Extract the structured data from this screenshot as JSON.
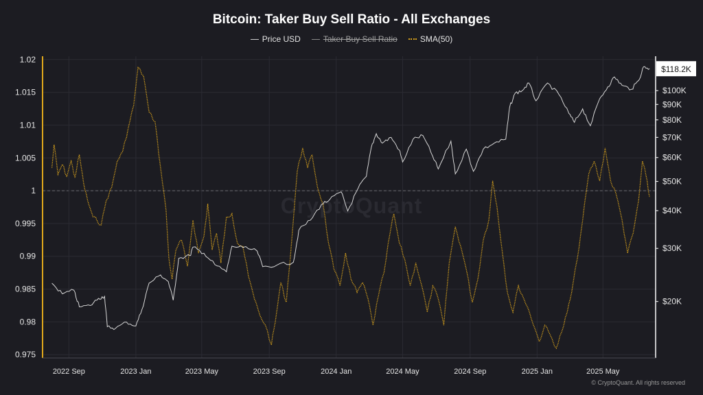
{
  "chart_data": {
    "type": "line",
    "title": "Bitcoin: Taker Buy Sell Ratio - All Exchanges",
    "legend_position": "top-center",
    "grid": true,
    "legend": [
      {
        "key": "price",
        "label": "Price USD",
        "style": "solid",
        "color": "#d0d0d0",
        "visible": true
      },
      {
        "key": "ratio",
        "label": "Taker Buy Sell Ratio",
        "style": "solid",
        "color": "#8a8a8a",
        "visible": false
      },
      {
        "key": "sma",
        "label": "SMA(50)",
        "style": "dotted",
        "color": "#e0a81c",
        "visible": true
      }
    ],
    "x_ticks": [
      "2022 Sep",
      "2023 Jan",
      "2023 May",
      "2023 Sep",
      "2024 Jan",
      "2024 May",
      "2024 Sep",
      "2025 Jan",
      "2025 May"
    ],
    "y_left": {
      "ticks": [
        "1.02",
        "1.015",
        "1.01",
        "1.005",
        "1",
        "0.995",
        "0.99",
        "0.985",
        "0.98",
        "0.975"
      ],
      "range": [
        0.9745,
        1.0205
      ],
      "reference_line": 1
    },
    "y_right": {
      "scale": "log",
      "ticks": [
        "$100K",
        "$90K",
        "$80K",
        "$70K",
        "$60K",
        "$50K",
        "$40K",
        "$30K",
        "$20K"
      ],
      "range": [
        13000,
        130000
      ],
      "current_label": "$118.2K",
      "current_value": 118200
    },
    "series": [
      {
        "name": "Price USD",
        "axis": "right",
        "points": [
          [
            "2022-08-01",
            23000
          ],
          [
            "2022-08-20",
            21200
          ],
          [
            "2022-09-10",
            21800
          ],
          [
            "2022-09-20",
            19200
          ],
          [
            "2022-10-10",
            19400
          ],
          [
            "2022-10-25",
            20500
          ],
          [
            "2022-11-05",
            20800
          ],
          [
            "2022-11-10",
            16500
          ],
          [
            "2022-11-25",
            16300
          ],
          [
            "2022-12-15",
            17100
          ],
          [
            "2023-01-01",
            16600
          ],
          [
            "2023-01-12",
            18800
          ],
          [
            "2023-01-25",
            23000
          ],
          [
            "2023-02-15",
            24500
          ],
          [
            "2023-03-01",
            23300
          ],
          [
            "2023-03-10",
            20200
          ],
          [
            "2023-03-20",
            27800
          ],
          [
            "2023-04-10",
            28400
          ],
          [
            "2023-04-15",
            30300
          ],
          [
            "2023-05-05",
            28900
          ],
          [
            "2023-05-25",
            26500
          ],
          [
            "2023-06-15",
            25100
          ],
          [
            "2023-06-25",
            30500
          ],
          [
            "2023-07-15",
            30200
          ],
          [
            "2023-08-10",
            29400
          ],
          [
            "2023-08-20",
            26100
          ],
          [
            "2023-09-15",
            26400
          ],
          [
            "2023-10-15",
            27000
          ],
          [
            "2023-10-25",
            34500
          ],
          [
            "2023-11-15",
            37200
          ],
          [
            "2023-12-05",
            41900
          ],
          [
            "2023-12-20",
            43500
          ],
          [
            "2024-01-10",
            46200
          ],
          [
            "2024-01-22",
            39900
          ],
          [
            "2024-02-10",
            47500
          ],
          [
            "2024-02-25",
            52000
          ],
          [
            "2024-03-05",
            65000
          ],
          [
            "2024-03-14",
            72000
          ],
          [
            "2024-03-25",
            67000
          ],
          [
            "2024-04-10",
            70000
          ],
          [
            "2024-04-25",
            63500
          ],
          [
            "2024-05-01",
            58000
          ],
          [
            "2024-05-20",
            69000
          ],
          [
            "2024-06-07",
            71000
          ],
          [
            "2024-06-25",
            60500
          ],
          [
            "2024-07-05",
            55000
          ],
          [
            "2024-07-28",
            68000
          ],
          [
            "2024-08-05",
            53000
          ],
          [
            "2024-08-25",
            64000
          ],
          [
            "2024-09-07",
            54000
          ],
          [
            "2024-09-25",
            64000
          ],
          [
            "2024-10-15",
            67000
          ],
          [
            "2024-11-05",
            69000
          ],
          [
            "2024-11-12",
            88000
          ],
          [
            "2024-11-22",
            98000
          ],
          [
            "2024-12-05",
            100000
          ],
          [
            "2024-12-17",
            106000
          ],
          [
            "2024-12-30",
            92500
          ],
          [
            "2025-01-20",
            106000
          ],
          [
            "2025-02-10",
            97000
          ],
          [
            "2025-02-28",
            84000
          ],
          [
            "2025-03-10",
            78500
          ],
          [
            "2025-03-25",
            87000
          ],
          [
            "2025-04-08",
            76500
          ],
          [
            "2025-04-25",
            94000
          ],
          [
            "2025-05-10",
            103000
          ],
          [
            "2025-05-22",
            111000
          ],
          [
            "2025-06-05",
            104000
          ],
          [
            "2025-06-22",
            101000
          ],
          [
            "2025-07-05",
            108000
          ],
          [
            "2025-07-14",
            120000
          ],
          [
            "2025-07-25",
            118200
          ]
        ]
      },
      {
        "name": "SMA(50)",
        "axis": "left",
        "points": [
          [
            "2022-08-01",
            1.0035
          ],
          [
            "2022-08-05",
            1.007
          ],
          [
            "2022-08-12",
            1.0025
          ],
          [
            "2022-08-20",
            1.004
          ],
          [
            "2022-08-28",
            1.0022
          ],
          [
            "2022-09-05",
            1.0045
          ],
          [
            "2022-09-12",
            1.002
          ],
          [
            "2022-09-20",
            1.0055
          ],
          [
            "2022-09-28",
            1.001
          ],
          [
            "2022-10-05",
            0.9985
          ],
          [
            "2022-10-15",
            0.996
          ],
          [
            "2022-10-22",
            0.9955
          ],
          [
            "2022-10-30",
            0.9948
          ],
          [
            "2022-11-08",
            0.9985
          ],
          [
            "2022-11-18",
            1.0005
          ],
          [
            "2022-11-28",
            1.0045
          ],
          [
            "2022-12-08",
            1.006
          ],
          [
            "2022-12-18",
            1.0095
          ],
          [
            "2022-12-28",
            1.013
          ],
          [
            "2023-01-05",
            1.0188
          ],
          [
            "2023-01-15",
            1.0175
          ],
          [
            "2023-01-25",
            1.012
          ],
          [
            "2023-02-05",
            1.0105
          ],
          [
            "2023-02-15",
            1.0035
          ],
          [
            "2023-02-25",
            0.997
          ],
          [
            "2023-03-02",
            0.9898
          ],
          [
            "2023-03-08",
            0.9865
          ],
          [
            "2023-03-15",
            0.991
          ],
          [
            "2023-03-25",
            0.9925
          ],
          [
            "2023-04-05",
            0.9885
          ],
          [
            "2023-04-15",
            0.9955
          ],
          [
            "2023-04-25",
            0.9905
          ],
          [
            "2023-05-05",
            0.993
          ],
          [
            "2023-05-12",
            0.998
          ],
          [
            "2023-05-20",
            0.991
          ],
          [
            "2023-05-28",
            0.9935
          ],
          [
            "2023-06-05",
            0.989
          ],
          [
            "2023-06-15",
            0.996
          ],
          [
            "2023-06-25",
            0.9965
          ],
          [
            "2023-07-05",
            0.992
          ],
          [
            "2023-07-15",
            0.9915
          ],
          [
            "2023-07-25",
            0.987
          ],
          [
            "2023-08-05",
            0.9835
          ],
          [
            "2023-08-15",
            0.981
          ],
          [
            "2023-08-25",
            0.9795
          ],
          [
            "2023-09-05",
            0.9765
          ],
          [
            "2023-09-12",
            0.98
          ],
          [
            "2023-09-22",
            0.986
          ],
          [
            "2023-10-02",
            0.983
          ],
          [
            "2023-10-12",
            0.9925
          ],
          [
            "2023-10-22",
            1.003
          ],
          [
            "2023-11-01",
            1.0065
          ],
          [
            "2023-11-10",
            1.0035
          ],
          [
            "2023-11-18",
            1.0055
          ],
          [
            "2023-11-28",
            1.0005
          ],
          [
            "2023-12-08",
            0.998
          ],
          [
            "2023-12-18",
            0.992
          ],
          [
            "2023-12-28",
            0.988
          ],
          [
            "2024-01-08",
            0.9855
          ],
          [
            "2024-01-18",
            0.9905
          ],
          [
            "2024-01-28",
            0.9865
          ],
          [
            "2024-02-08",
            0.9845
          ],
          [
            "2024-02-18",
            0.986
          ],
          [
            "2024-02-28",
            0.9835
          ],
          [
            "2024-03-08",
            0.9795
          ],
          [
            "2024-03-18",
            0.984
          ],
          [
            "2024-03-28",
            0.9875
          ],
          [
            "2024-04-08",
            0.9935
          ],
          [
            "2024-04-15",
            0.9965
          ],
          [
            "2024-04-25",
            0.992
          ],
          [
            "2024-05-05",
            0.9895
          ],
          [
            "2024-05-15",
            0.9855
          ],
          [
            "2024-05-25",
            0.989
          ],
          [
            "2024-06-05",
            0.9855
          ],
          [
            "2024-06-15",
            0.9815
          ],
          [
            "2024-06-25",
            0.9855
          ],
          [
            "2024-07-05",
            0.9835
          ],
          [
            "2024-07-15",
            0.9795
          ],
          [
            "2024-07-25",
            0.989
          ],
          [
            "2024-08-05",
            0.9945
          ],
          [
            "2024-08-15",
            0.9915
          ],
          [
            "2024-08-25",
            0.988
          ],
          [
            "2024-09-05",
            0.983
          ],
          [
            "2024-09-15",
            0.9865
          ],
          [
            "2024-09-25",
            0.9925
          ],
          [
            "2024-10-05",
            0.9955
          ],
          [
            "2024-10-12",
            1.0015
          ],
          [
            "2024-10-20",
            0.9975
          ],
          [
            "2024-10-30",
            0.9905
          ],
          [
            "2024-11-08",
            0.9845
          ],
          [
            "2024-11-18",
            0.9815
          ],
          [
            "2024-11-28",
            0.9855
          ],
          [
            "2024-12-08",
            0.9835
          ],
          [
            "2024-12-18",
            0.9815
          ],
          [
            "2024-12-28",
            0.979
          ],
          [
            "2025-01-05",
            0.977
          ],
          [
            "2025-01-15",
            0.9795
          ],
          [
            "2025-01-25",
            0.978
          ],
          [
            "2025-02-05",
            0.976
          ],
          [
            "2025-02-15",
            0.9785
          ],
          [
            "2025-02-25",
            0.9815
          ],
          [
            "2025-03-05",
            0.9845
          ],
          [
            "2025-03-15",
            0.9895
          ],
          [
            "2025-03-25",
            0.9955
          ],
          [
            "2025-04-05",
            1.0025
          ],
          [
            "2025-04-15",
            1.0045
          ],
          [
            "2025-04-25",
            1.0015
          ],
          [
            "2025-05-05",
            1.0065
          ],
          [
            "2025-05-15",
            1.0015
          ],
          [
            "2025-05-25",
            0.9995
          ],
          [
            "2025-06-05",
            0.9955
          ],
          [
            "2025-06-15",
            0.9905
          ],
          [
            "2025-06-25",
            0.9935
          ],
          [
            "2025-07-05",
            0.9985
          ],
          [
            "2025-07-12",
            1.0045
          ],
          [
            "2025-07-18",
            1.0025
          ],
          [
            "2025-07-25",
            0.999
          ]
        ]
      }
    ],
    "watermark": "CryptoQuant",
    "copyright": "© CryptoQuant. All rights reserved"
  }
}
